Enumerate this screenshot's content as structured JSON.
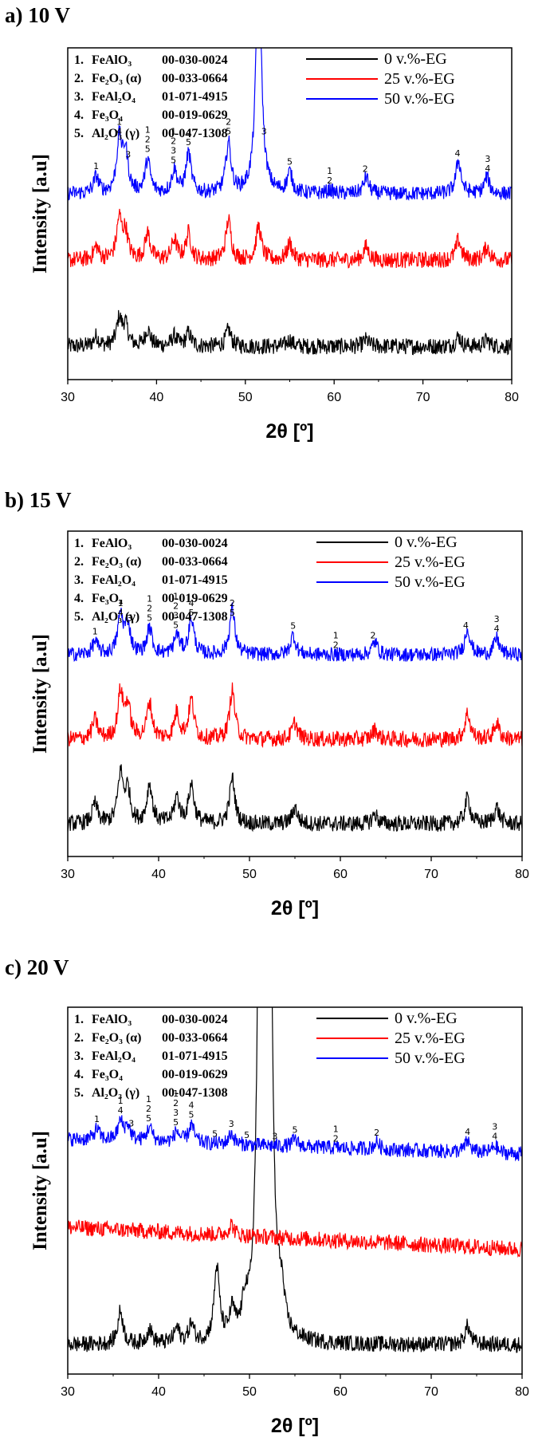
{
  "chart_data": [
    {
      "type": "line",
      "panel_title": "a) 10 V",
      "xlabel": "2θ [º]",
      "ylabel": "Intensity [a.u]",
      "xlim": [
        30,
        80
      ],
      "x_ticks": [
        "30",
        "40",
        "50",
        "60",
        "70",
        "80"
      ],
      "phase_list": [
        {
          "num": "1.",
          "name": "FeAlO₃",
          "code": "00-030-0024"
        },
        {
          "num": "2.",
          "name": "Fe₂O₃ (α)",
          "code": "00-033-0664"
        },
        {
          "num": "3.",
          "name": "FeAl₂O₄",
          "code": "01-071-4915"
        },
        {
          "num": "4.",
          "name": "Fe₃O₄",
          "code": "00-019-0629"
        },
        {
          "num": "5.",
          "name": "Al₂O₃ (γ)",
          "code": "00-047-1308"
        }
      ],
      "series": [
        {
          "name": "0 v.%-EG",
          "color": "#000000",
          "baseline": 0.1,
          "noise": 0.025,
          "peaks": [
            [
              33.2,
              0.03
            ],
            [
              35.8,
              0.08
            ],
            [
              36.5,
              0.06
            ],
            [
              39,
              0.05
            ],
            [
              42,
              0.03
            ],
            [
              43.6,
              0.04
            ],
            [
              48.1,
              0.05
            ],
            [
              55,
              0.02
            ],
            [
              63.6,
              0.02
            ],
            [
              74,
              0.03
            ],
            [
              77.2,
              0.02
            ]
          ]
        },
        {
          "name": "25 v.%-EG",
          "color": "#ff0000",
          "baseline": 0.36,
          "noise": 0.025,
          "peaks": [
            [
              33.2,
              0.04
            ],
            [
              35.8,
              0.12
            ],
            [
              36.5,
              0.08
            ],
            [
              39,
              0.08
            ],
            [
              42,
              0.06
            ],
            [
              43.6,
              0.08
            ],
            [
              48.1,
              0.12
            ],
            [
              51.5,
              0.1
            ],
            [
              55,
              0.05
            ],
            [
              63.6,
              0.04
            ],
            [
              74,
              0.06
            ],
            [
              77.2,
              0.04
            ]
          ]
        },
        {
          "name": "50 v.%-EG",
          "color": "#0000ff",
          "baseline": 0.56,
          "noise": 0.022,
          "peaks": [
            [
              33.2,
              0.05
            ],
            [
              35.8,
              0.16
            ],
            [
              36.5,
              0.12
            ],
            [
              39,
              0.1
            ],
            [
              42,
              0.07
            ],
            [
              43.6,
              0.12
            ],
            [
              48.1,
              0.15
            ],
            [
              51.5,
              0.75
            ],
            [
              55,
              0.06
            ],
            [
              59.5,
              0.01
            ],
            [
              63.6,
              0.05
            ],
            [
              74,
              0.1
            ],
            [
              77.2,
              0.05
            ]
          ]
        }
      ],
      "peak_labels": [
        {
          "x": 33.2,
          "lines": [
            "1"
          ]
        },
        {
          "x": 35.8,
          "lines": [
            "1",
            "4"
          ]
        },
        {
          "x": 36.8,
          "lines": [
            "3"
          ]
        },
        {
          "x": 39,
          "lines": [
            "1",
            "2",
            "5"
          ]
        },
        {
          "x": 41.9,
          "lines": [
            "1",
            "2",
            "3",
            "5"
          ]
        },
        {
          "x": 43.6,
          "lines": [
            "4",
            "5"
          ]
        },
        {
          "x": 48.1,
          "lines": [
            "2",
            "5"
          ]
        },
        {
          "x": 52.1,
          "lines": [
            "3"
          ]
        },
        {
          "x": 55,
          "lines": [
            "5"
          ]
        },
        {
          "x": 59.5,
          "lines": [
            "1",
            "2"
          ]
        },
        {
          "x": 63.5,
          "lines": [
            "2"
          ]
        },
        {
          "x": 73.9,
          "lines": [
            "4"
          ]
        },
        {
          "x": 77.3,
          "lines": [
            "3",
            "4"
          ]
        }
      ]
    },
    {
      "type": "line",
      "panel_title": "b) 15 V",
      "xlabel": "2θ [º]",
      "ylabel": "Intensity [a.u]",
      "xlim": [
        30,
        80
      ],
      "x_ticks": [
        "30",
        "40",
        "50",
        "60",
        "70",
        "80"
      ],
      "phase_list": [
        {
          "num": "1.",
          "name": "FeAlO₃",
          "code": "00-030-0024"
        },
        {
          "num": "2.",
          "name": "Fe₂O₃ (α)",
          "code": "00-033-0664"
        },
        {
          "num": "3.",
          "name": "FeAl₂O₄",
          "code": "01-071-4915"
        },
        {
          "num": "4.",
          "name": "Fe₃O₄",
          "code": "00-019-0629"
        },
        {
          "num": "5.",
          "name": "Al₂O₃ (γ)",
          "code": "00-047-1308"
        }
      ],
      "series": [
        {
          "name": "0 v.%-EG",
          "color": "#000000",
          "baseline": 0.1,
          "noise": 0.025,
          "peaks": [
            [
              33,
              0.06
            ],
            [
              35.8,
              0.15
            ],
            [
              36.6,
              0.1
            ],
            [
              39,
              0.12
            ],
            [
              42,
              0.08
            ],
            [
              43.6,
              0.12
            ],
            [
              48.1,
              0.14
            ],
            [
              55,
              0.05
            ],
            [
              63.8,
              0.03
            ],
            [
              74,
              0.08
            ],
            [
              77.2,
              0.05
            ]
          ]
        },
        {
          "name": "25 v.%-EG",
          "color": "#ff0000",
          "baseline": 0.36,
          "noise": 0.025,
          "peaks": [
            [
              33,
              0.06
            ],
            [
              35.8,
              0.14
            ],
            [
              36.6,
              0.1
            ],
            [
              39,
              0.11
            ],
            [
              42,
              0.08
            ],
            [
              43.6,
              0.12
            ],
            [
              48.1,
              0.15
            ],
            [
              55,
              0.05
            ],
            [
              63.8,
              0.03
            ],
            [
              74,
              0.08
            ],
            [
              77.2,
              0.05
            ]
          ]
        },
        {
          "name": "50 v.%-EG",
          "color": "#0000ff",
          "baseline": 0.62,
          "noise": 0.022,
          "peaks": [
            [
              33,
              0.04
            ],
            [
              35.8,
              0.12
            ],
            [
              36.6,
              0.09
            ],
            [
              39,
              0.08
            ],
            [
              42,
              0.06
            ],
            [
              43.6,
              0.11
            ],
            [
              48.1,
              0.14
            ],
            [
              54.8,
              0.06
            ],
            [
              63.8,
              0.04
            ],
            [
              74,
              0.08
            ],
            [
              77.2,
              0.05
            ]
          ]
        }
      ],
      "peak_labels": [
        {
          "x": 33,
          "lines": [
            "1"
          ]
        },
        {
          "x": 35.8,
          "lines": [
            "1",
            "4"
          ]
        },
        {
          "x": 36.8,
          "lines": [
            "3"
          ]
        },
        {
          "x": 39,
          "lines": [
            "1",
            "2",
            "5"
          ]
        },
        {
          "x": 41.9,
          "lines": [
            "1",
            "2",
            "3",
            "5"
          ]
        },
        {
          "x": 43.6,
          "lines": [
            "4",
            "5"
          ]
        },
        {
          "x": 48.1,
          "lines": [
            "2",
            "5"
          ]
        },
        {
          "x": 54.8,
          "lines": [
            "5"
          ]
        },
        {
          "x": 59.5,
          "lines": [
            "1",
            "2"
          ]
        },
        {
          "x": 63.6,
          "lines": [
            "2"
          ]
        },
        {
          "x": 73.8,
          "lines": [
            "4"
          ]
        },
        {
          "x": 77.2,
          "lines": [
            "3",
            "4"
          ]
        }
      ]
    },
    {
      "type": "line",
      "panel_title": "c) 20 V",
      "xlabel": "2θ [º]",
      "ylabel": "Intensity [a.u]",
      "xlim": [
        30,
        80
      ],
      "x_ticks": [
        "30",
        "40",
        "50",
        "60",
        "70",
        "80"
      ],
      "phase_list": [
        {
          "num": "1.",
          "name": "FeAlO₃",
          "code": "00-030-0024"
        },
        {
          "num": "2.",
          "name": "Fe₂O₃ (α)",
          "code": "00-033-0664"
        },
        {
          "num": "3.",
          "name": "FeAl₂O₄",
          "code": "01-071-4915"
        },
        {
          "num": "4.",
          "name": "Fe₃O₄",
          "code": "00-019-0629"
        },
        {
          "num": "5.",
          "name": "Al₂O₃ (γ)",
          "code": "00-047-1308"
        }
      ],
      "series": [
        {
          "name": "0 v.%-EG",
          "color": "#000000",
          "baseline": 0.08,
          "noise": 0.022,
          "peaks": [
            [
              35.8,
              0.09
            ],
            [
              39,
              0.04
            ],
            [
              42,
              0.04
            ],
            [
              43.6,
              0.05
            ],
            [
              46.4,
              0.2
            ],
            [
              48.1,
              0.07
            ],
            [
              49.5,
              0.08
            ],
            [
              51.2,
              1.6
            ],
            [
              52.2,
              1.4
            ],
            [
              53.5,
              0.1
            ],
            [
              74,
              0.05
            ]
          ]
        },
        {
          "name": "25 v.%-EG",
          "color": "#ff0000",
          "baseline": 0.4,
          "noise": 0.022,
          "peaks": [
            [
              48,
              0.03
            ]
          ],
          "slope": -0.06
        },
        {
          "name": "50 v.%-EG",
          "color": "#0000ff",
          "baseline": 0.64,
          "noise": 0.02,
          "peaks": [
            [
              33.2,
              0.03
            ],
            [
              35.8,
              0.05
            ],
            [
              36.6,
              0.04
            ],
            [
              39,
              0.04
            ],
            [
              42,
              0.03
            ],
            [
              43.6,
              0.05
            ],
            [
              48,
              0.03
            ],
            [
              55,
              0.02
            ],
            [
              64,
              0.02
            ],
            [
              74,
              0.03
            ],
            [
              77,
              0.02
            ]
          ],
          "slope": -0.04
        }
      ],
      "peak_labels": [
        {
          "x": 33.2,
          "lines": [
            "1"
          ]
        },
        {
          "x": 35.8,
          "lines": [
            "1",
            "4"
          ]
        },
        {
          "x": 37,
          "lines": [
            "3"
          ]
        },
        {
          "x": 38.9,
          "lines": [
            "1",
            "2",
            "5"
          ]
        },
        {
          "x": 41.9,
          "lines": [
            "1",
            "2",
            "3",
            "5"
          ]
        },
        {
          "x": 43.6,
          "lines": [
            "4",
            "5"
          ]
        },
        {
          "x": 46.2,
          "lines": [
            "5"
          ]
        },
        {
          "x": 48,
          "lines": [
            "3"
          ]
        },
        {
          "x": 49.7,
          "lines": [
            "5"
          ]
        },
        {
          "x": 55,
          "lines": [
            "5"
          ]
        },
        {
          "x": 52.8,
          "lines": [
            "3"
          ]
        },
        {
          "x": 59.5,
          "lines": [
            "1",
            "2"
          ]
        },
        {
          "x": 64,
          "lines": [
            "2"
          ]
        },
        {
          "x": 74,
          "lines": [
            "4"
          ]
        },
        {
          "x": 77,
          "lines": [
            "3",
            "4"
          ]
        }
      ]
    }
  ]
}
